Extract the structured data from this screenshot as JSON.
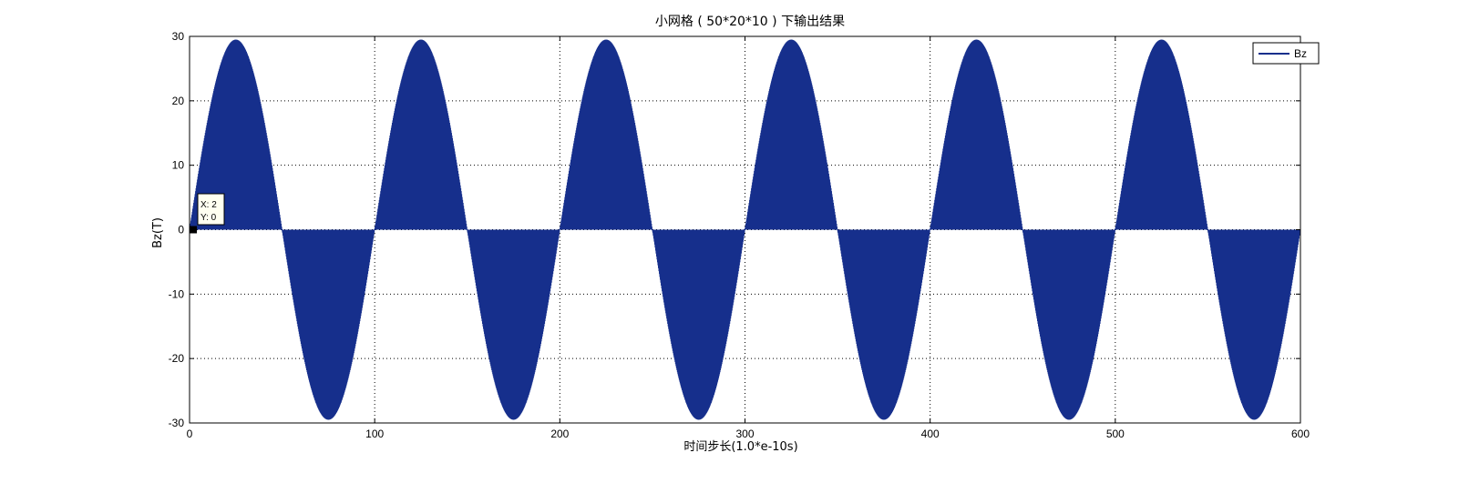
{
  "chart_data": {
    "type": "line",
    "title": "小网格 ( 50*20*10 ) 下输出结果",
    "xlabel": "时间步长(1.0*e-10s)",
    "ylabel": "Bz(T)",
    "xlim": [
      0,
      600
    ],
    "ylim": [
      -30,
      30
    ],
    "xticks": [
      0,
      100,
      200,
      300,
      400,
      500,
      600
    ],
    "yticks": [
      30,
      20,
      10,
      0,
      -10,
      -20,
      -30
    ],
    "xtick_labels": [
      "0",
      "100",
      "200",
      "300",
      "400",
      "500",
      "600"
    ],
    "ytick_labels": [
      "30",
      "20",
      "10",
      "0",
      "-10",
      "-20",
      "-30"
    ],
    "grid": true,
    "legend_position": "top-right",
    "series": [
      {
        "name": "Bz",
        "color": "#162f8c",
        "fill_style": "dense oscillation between 0 and envelope",
        "envelope": {
          "amplitude": 29.5,
          "period": 100,
          "phase_start": 0
        },
        "envelope_points": [
          [
            0,
            0
          ],
          [
            25,
            29.5
          ],
          [
            50,
            0
          ],
          [
            75,
            -29.5
          ],
          [
            100,
            0
          ],
          [
            125,
            29.5
          ],
          [
            150,
            0
          ],
          [
            175,
            -29.5
          ],
          [
            200,
            0
          ],
          [
            225,
            29.5
          ],
          [
            250,
            0
          ],
          [
            275,
            -29.5
          ],
          [
            300,
            0
          ],
          [
            325,
            29.5
          ],
          [
            350,
            0
          ],
          [
            375,
            -29.5
          ],
          [
            400,
            0
          ],
          [
            425,
            29.5
          ],
          [
            450,
            0
          ],
          [
            475,
            -29.5
          ],
          [
            500,
            0
          ],
          [
            525,
            29.5
          ],
          [
            550,
            0
          ],
          [
            575,
            -29.5
          ],
          [
            600,
            0
          ]
        ]
      }
    ],
    "datatip": {
      "x_label": "X: 2",
      "y_label": "Y: 0",
      "x": 2,
      "y": 0
    }
  }
}
